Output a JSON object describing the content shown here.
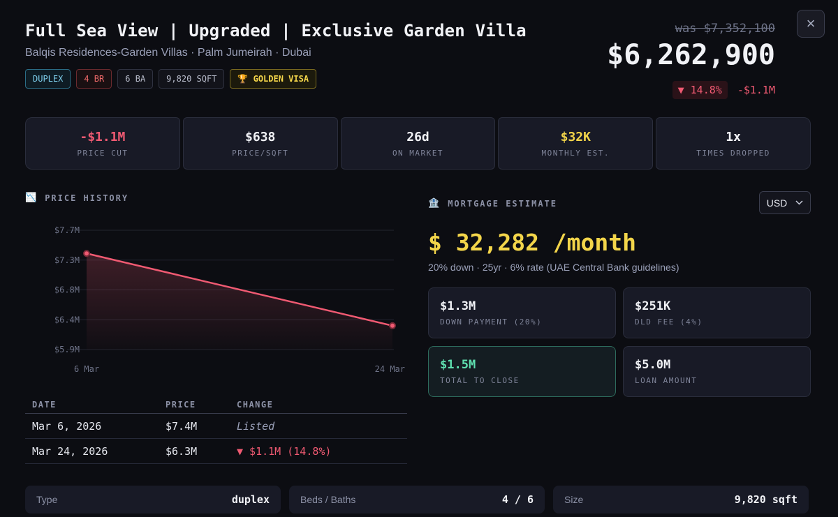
{
  "listing": {
    "title": "Full Sea View | Upgraded | Exclusive Garden Villa",
    "subtitle": "Balqis Residences-Garden Villas · Palm Jumeirah · Dubai",
    "tags": [
      "DUPLEX",
      "4 BR",
      "6 BA",
      "9,820 SQFT",
      "🏆 GOLDEN VISA"
    ],
    "was_price": "was $7,352,100",
    "price": "$6,262,900",
    "drop_pct": "▼ 14.8%",
    "drop_amount": "-$1.1M",
    "close_icon": "×"
  },
  "stats": [
    {
      "value": "-$1.1M",
      "label": "PRICE CUT",
      "color": "#f05a72"
    },
    {
      "value": "$638",
      "label": "PRICE/SQFT"
    },
    {
      "value": "26d",
      "label": "ON MARKET"
    },
    {
      "value": "$32K",
      "label": "MONTHLY EST.",
      "color": "#f3d54a"
    },
    {
      "value": "1x",
      "label": "TIMES DROPPED"
    }
  ],
  "price_history": {
    "icon": "📉",
    "heading": "PRICE HISTORY",
    "table_headers": [
      "DATE",
      "PRICE",
      "CHANGE"
    ],
    "rows": [
      {
        "date": "Mar 6, 2026",
        "price": "$7.4M",
        "change": "Listed"
      },
      {
        "date": "Mar 24, 2026",
        "price": "$6.3M",
        "change": "▼ $1.1M (14.8%)"
      }
    ]
  },
  "chart_data": {
    "type": "line",
    "x": [
      "6 Mar",
      "24 Mar"
    ],
    "series": [
      {
        "values": [
          7.35,
          6.26
        ]
      }
    ],
    "y_ticks": [
      "$7.7M",
      "$7.3M",
      "$6.8M",
      "$6.4M",
      "$5.9M"
    ],
    "ylim": [
      5.9,
      7.7
    ],
    "color": "#f05a72",
    "grid": true
  },
  "mortgage": {
    "icon": "🏦",
    "heading": "MORTGAGE ESTIMATE",
    "currency": "USD",
    "monthly": "$ 32,282 /month",
    "note": "20% down · 25yr · 6% rate (UAE Central Bank guidelines)",
    "cards": [
      {
        "value": "$1.3M",
        "label": "DOWN PAYMENT (20%)"
      },
      {
        "value": "$251K",
        "label": "DLD FEE (4%)"
      },
      {
        "value": "$1.5M",
        "label": "TOTAL TO CLOSE"
      },
      {
        "value": "$5.0M",
        "label": "LOAN AMOUNT"
      }
    ]
  },
  "details": [
    {
      "key": "Type",
      "value": "duplex"
    },
    {
      "key": "Beds / Baths",
      "value": "4 / 6"
    },
    {
      "key": "Size",
      "value": "9,820 sqft"
    }
  ]
}
